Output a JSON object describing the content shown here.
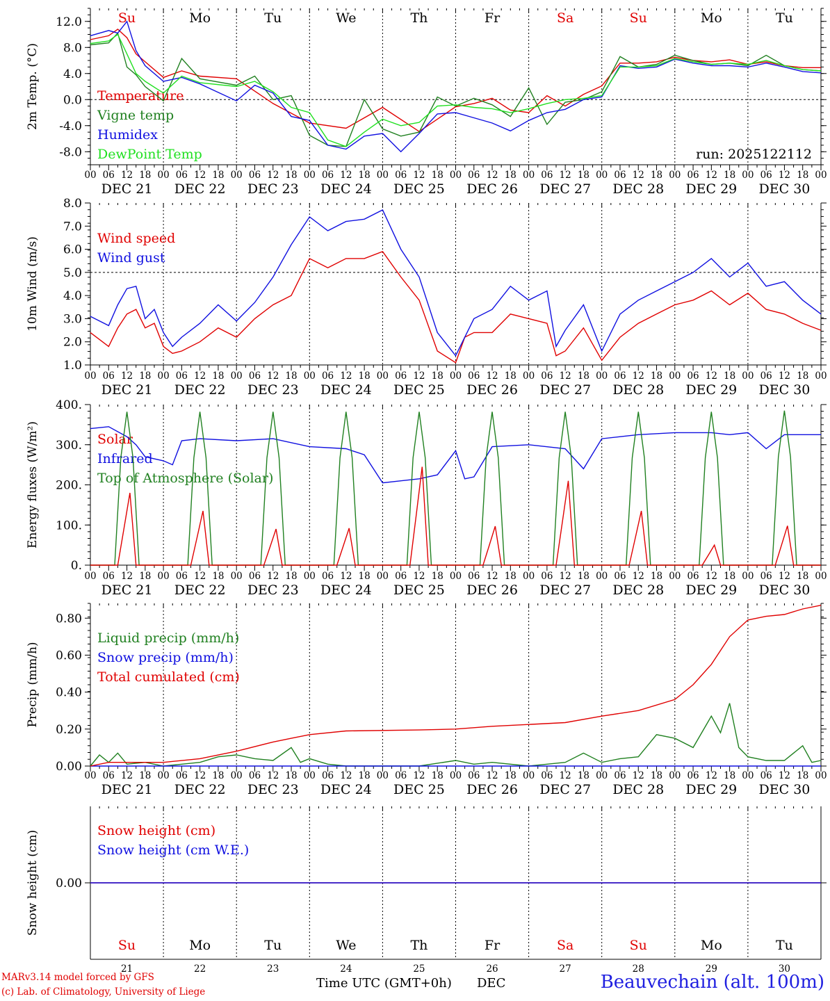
{
  "footer": {
    "model": "MARv3.14 model forced by GFS",
    "credit": "(c) Lab. of Climatology, University of Liege",
    "time_label": "Time UTC (GMT+0h)",
    "month": "DEC",
    "station": "Beauvechain (alt. 100m)"
  },
  "colors": {
    "red": "#e00000",
    "green": "#208020",
    "blue": "#1010e0",
    "lightgreen": "#20e020",
    "grid": "#000000"
  },
  "axis": {
    "hour_ticks": [
      "00",
      "06",
      "12",
      "18"
    ],
    "day_labels": [
      "DEC 21",
      "DEC 22",
      "DEC 23",
      "DEC 24",
      "DEC 25",
      "DEC 26",
      "DEC 27",
      "DEC 28",
      "DEC 29",
      "DEC 30"
    ],
    "weekdays": [
      "Su",
      "Mo",
      "Tu",
      "We",
      "Th",
      "Fr",
      "Sa",
      "Su",
      "Mo",
      "Tu"
    ],
    "weekday_colors": [
      "#e00000",
      "#000000",
      "#000000",
      "#000000",
      "#000000",
      "#000000",
      "#e00000",
      "#e00000",
      "#000000",
      "#000000"
    ],
    "day_numbers": [
      "21",
      "22",
      "23",
      "24",
      "25",
      "26",
      "27",
      "28",
      "29",
      "30"
    ],
    "x_start": "2025-12-21T00:00Z",
    "x_end": "2025-12-31T00:00Z"
  },
  "chart_data": [
    {
      "type": "line",
      "ylabel": "2m Temp. (°C)",
      "ylim": [
        -10.0,
        14.0
      ],
      "yticks": [
        "12.0",
        "8.0",
        "4.0",
        "0.0",
        "-4.0",
        "-8.0"
      ],
      "ytick_values": [
        12,
        8,
        4,
        0,
        -4,
        -8
      ],
      "ref_line": 0,
      "annotation": "run: 2025122112",
      "legend_placement": "left",
      "x_unit": "hours from 2025-12-21 00 UTC",
      "series": [
        {
          "name": "Temperature",
          "color": "#e00000",
          "x": [
            0,
            6,
            9,
            12,
            15,
            18,
            24,
            30,
            36,
            48,
            60,
            72,
            84,
            96,
            108,
            120,
            126,
            132,
            138,
            144,
            150,
            156,
            162,
            168,
            174,
            180,
            186,
            192,
            198,
            204,
            210,
            216,
            222,
            228,
            234,
            240
          ],
          "values": [
            9.2,
            9.8,
            10.8,
            9.5,
            7.0,
            5.8,
            3.4,
            4.4,
            3.6,
            3.2,
            -0.6,
            -3.6,
            -4.4,
            -1.2,
            -4.9,
            -1.1,
            -0.6,
            0.2,
            -1.6,
            -2.0,
            0.6,
            -1.0,
            0.8,
            2.1,
            5.6,
            5.6,
            5.8,
            6.5,
            6.0,
            5.8,
            6.1,
            5.4,
            5.8,
            5.2,
            4.9,
            4.9
          ]
        },
        {
          "name": "Vigne temp",
          "color": "#208020",
          "x": [
            0,
            6,
            9,
            12,
            15,
            18,
            24,
            30,
            36,
            48,
            54,
            60,
            66,
            72,
            78,
            84,
            90,
            96,
            102,
            108,
            114,
            120,
            126,
            132,
            138,
            144,
            150,
            156,
            162,
            168,
            174,
            180,
            186,
            192,
            198,
            204,
            210,
            216,
            222,
            228,
            234,
            240
          ],
          "values": [
            8.4,
            8.7,
            10.2,
            5.0,
            3.8,
            2.0,
            -0.2,
            6.3,
            3.2,
            2.2,
            3.6,
            0.0,
            0.6,
            -5.5,
            -7.0,
            -7.2,
            0.0,
            -4.5,
            -5.6,
            -5.0,
            0.4,
            -1.0,
            0.2,
            -0.8,
            -2.6,
            1.8,
            -3.8,
            -0.4,
            0.0,
            1.2,
            6.6,
            5.0,
            5.4,
            6.8,
            6.0,
            5.4,
            5.6,
            5.2,
            6.8,
            5.2,
            4.6,
            4.4
          ]
        },
        {
          "name": "Humidex",
          "color": "#1010e0",
          "x": [
            0,
            6,
            9,
            12,
            15,
            18,
            24,
            30,
            36,
            48,
            54,
            60,
            66,
            72,
            78,
            84,
            90,
            96,
            102,
            108,
            114,
            120,
            126,
            132,
            138,
            144,
            150,
            156,
            162,
            168,
            174,
            180,
            186,
            192,
            198,
            204,
            210,
            216,
            222,
            228,
            234,
            240
          ],
          "values": [
            9.8,
            10.6,
            10.2,
            12.0,
            7.5,
            5.2,
            2.8,
            3.4,
            2.4,
            -0.2,
            2.2,
            1.0,
            -2.6,
            -3.2,
            -7.0,
            -7.6,
            -5.6,
            -5.2,
            -8.0,
            -5.2,
            -2.2,
            -2.0,
            -2.8,
            -3.6,
            -4.8,
            -3.2,
            -2.0,
            -1.5,
            0.0,
            0.4,
            5.2,
            4.8,
            5.0,
            6.2,
            5.6,
            5.2,
            5.2,
            5.0,
            5.6,
            5.0,
            4.3,
            4.1
          ]
        },
        {
          "name": "DewPoint Temp",
          "color": "#20e020",
          "x": [
            0,
            6,
            9,
            12,
            15,
            18,
            24,
            30,
            36,
            48,
            54,
            60,
            66,
            72,
            78,
            84,
            90,
            96,
            102,
            108,
            114,
            120,
            126,
            132,
            138,
            144,
            150,
            156,
            162,
            168,
            174,
            180,
            186,
            192,
            198,
            204,
            210,
            216,
            222,
            228,
            234,
            240
          ],
          "values": [
            8.6,
            9.0,
            10.0,
            7.0,
            4.0,
            2.8,
            1.0,
            3.6,
            2.6,
            2.0,
            2.8,
            1.2,
            -1.2,
            -2.0,
            -6.2,
            -7.2,
            -5.0,
            -3.0,
            -4.0,
            -3.5,
            -1.0,
            -0.8,
            -1.2,
            -1.4,
            -2.0,
            -1.4,
            -0.6,
            0.0,
            0.2,
            0.6,
            5.0,
            5.0,
            5.2,
            6.3,
            5.8,
            5.4,
            5.6,
            5.4,
            6.0,
            5.2,
            4.6,
            4.4
          ]
        }
      ]
    },
    {
      "type": "line",
      "ylabel": "10m Wind (m/s)",
      "ylim": [
        1.0,
        8.0
      ],
      "yticks": [
        "8.0",
        "7.0",
        "6.0",
        "5.0",
        "4.0",
        "3.0",
        "2.0",
        "1.0"
      ],
      "ytick_values": [
        8,
        7,
        6,
        5,
        4,
        3,
        2,
        1
      ],
      "ref_line": 5,
      "legend_placement": "top-left",
      "x_unit": "hours from 2025-12-21 00 UTC",
      "series": [
        {
          "name": "Wind speed",
          "color": "#e00000",
          "x": [
            0,
            6,
            9,
            12,
            15,
            18,
            21,
            24,
            27,
            30,
            36,
            42,
            48,
            54,
            60,
            66,
            72,
            78,
            84,
            90,
            96,
            102,
            108,
            114,
            120,
            123,
            126,
            132,
            138,
            144,
            150,
            153,
            156,
            162,
            168,
            174,
            180,
            186,
            192,
            198,
            204,
            210,
            216,
            222,
            228,
            234,
            240
          ],
          "values": [
            2.4,
            1.8,
            2.6,
            3.2,
            3.4,
            2.6,
            2.8,
            1.8,
            1.5,
            1.6,
            2.0,
            2.6,
            2.2,
            3.0,
            3.6,
            4.0,
            5.6,
            5.2,
            5.6,
            5.6,
            5.9,
            4.8,
            3.8,
            1.6,
            1.1,
            2.2,
            2.4,
            2.4,
            3.2,
            3.0,
            2.8,
            1.4,
            1.6,
            2.6,
            1.2,
            2.2,
            2.8,
            3.2,
            3.6,
            3.8,
            4.2,
            3.6,
            4.1,
            3.4,
            3.2,
            2.8,
            2.5
          ]
        },
        {
          "name": "Wind gust",
          "color": "#1010e0",
          "x": [
            0,
            6,
            9,
            12,
            15,
            18,
            21,
            24,
            27,
            30,
            36,
            42,
            48,
            54,
            60,
            66,
            72,
            78,
            84,
            90,
            96,
            102,
            108,
            114,
            120,
            123,
            126,
            132,
            138,
            144,
            150,
            153,
            156,
            162,
            168,
            174,
            180,
            186,
            192,
            198,
            204,
            210,
            216,
            222,
            228,
            234,
            240
          ],
          "values": [
            3.1,
            2.7,
            3.6,
            4.3,
            4.4,
            3.0,
            3.4,
            2.4,
            1.8,
            2.2,
            2.8,
            3.6,
            2.9,
            3.7,
            4.8,
            6.2,
            7.4,
            6.8,
            7.2,
            7.3,
            7.7,
            6.0,
            4.8,
            2.4,
            1.4,
            2.2,
            3.0,
            3.4,
            4.4,
            3.8,
            4.2,
            1.8,
            2.5,
            3.6,
            1.6,
            3.2,
            3.8,
            4.2,
            4.6,
            5.0,
            5.6,
            4.8,
            5.4,
            4.4,
            4.6,
            3.8,
            3.2
          ]
        }
      ]
    },
    {
      "type": "line",
      "ylabel": "Energy fluxes (W/m²)",
      "ylim": [
        0,
        400
      ],
      "yticks": [
        "400.",
        "300.",
        "200.",
        "100.",
        "0."
      ],
      "ytick_values": [
        400,
        300,
        200,
        100,
        0
      ],
      "legend_placement": "top-left",
      "x_unit": "hours from 2025-12-21 00 UTC",
      "daily_peaks": {
        "toa_solar": [
          382,
          382,
          382,
          382,
          382,
          382,
          382,
          382,
          382,
          385
        ],
        "solar": [
          180,
          135,
          90,
          92,
          245,
          97,
          210,
          135,
          50,
          98
        ]
      },
      "series": [
        {
          "name": "Solar",
          "color": "#e00000",
          "x": [],
          "values": []
        },
        {
          "name": "Infrared",
          "color": "#1010e0",
          "x": [
            0,
            6,
            12,
            15,
            18,
            24,
            27,
            30,
            36,
            48,
            60,
            72,
            84,
            90,
            96,
            102,
            108,
            114,
            120,
            123,
            126,
            132,
            144,
            156,
            162,
            168,
            174,
            180,
            192,
            204,
            210,
            216,
            222,
            228,
            234,
            240
          ],
          "values": [
            340,
            345,
            320,
            300,
            270,
            260,
            250,
            310,
            315,
            310,
            315,
            295,
            290,
            275,
            205,
            210,
            215,
            225,
            285,
            215,
            220,
            295,
            300,
            290,
            240,
            315,
            320,
            325,
            330,
            330,
            325,
            330,
            290,
            325,
            325,
            325
          ]
        },
        {
          "name": "Top of Atmosphere (Solar)",
          "color": "#208020",
          "x": [],
          "values": []
        }
      ]
    },
    {
      "type": "line",
      "ylabel": "Precip (mm/h)",
      "ylim": [
        0,
        0.88
      ],
      "yticks": [
        "0.80",
        "0.60",
        "0.40",
        "0.20",
        "0.00"
      ],
      "ytick_values": [
        0.8,
        0.6,
        0.4,
        0.2,
        0.0
      ],
      "legend_placement": "top-left",
      "x_unit": "hours from 2025-12-21 00 UTC",
      "series": [
        {
          "name": "Liquid precip (mm/h)",
          "color": "#208020",
          "x": [
            0,
            3,
            6,
            9,
            12,
            18,
            24,
            36,
            42,
            48,
            54,
            60,
            66,
            69,
            72,
            78,
            84,
            96,
            108,
            120,
            126,
            132,
            144,
            156,
            162,
            168,
            174,
            180,
            186,
            192,
            198,
            204,
            207,
            210,
            213,
            216,
            222,
            228,
            234,
            237,
            240
          ],
          "values": [
            0.0,
            0.06,
            0.02,
            0.07,
            0.01,
            0.02,
            0.0,
            0.02,
            0.05,
            0.06,
            0.04,
            0.03,
            0.1,
            0.02,
            0.04,
            0.01,
            0.0,
            0.0,
            0.0,
            0.03,
            0.01,
            0.02,
            0.0,
            0.02,
            0.07,
            0.02,
            0.04,
            0.05,
            0.17,
            0.15,
            0.1,
            0.27,
            0.18,
            0.34,
            0.1,
            0.05,
            0.03,
            0.03,
            0.11,
            0.02,
            0.03
          ]
        },
        {
          "name": "Snow precip (mm/h)",
          "color": "#1010e0",
          "x": [
            0,
            240
          ],
          "values": [
            0,
            0
          ]
        },
        {
          "name": "Total cumulated (cm)",
          "color": "#e00000",
          "x": [
            0,
            6,
            24,
            36,
            48,
            60,
            66,
            72,
            84,
            108,
            120,
            132,
            144,
            156,
            168,
            180,
            192,
            198,
            204,
            210,
            216,
            222,
            228,
            234,
            240
          ],
          "values": [
            0.0,
            0.02,
            0.02,
            0.04,
            0.08,
            0.13,
            0.15,
            0.17,
            0.19,
            0.195,
            0.2,
            0.215,
            0.225,
            0.235,
            0.27,
            0.3,
            0.36,
            0.44,
            0.55,
            0.7,
            0.79,
            0.81,
            0.82,
            0.85,
            0.87
          ]
        }
      ]
    },
    {
      "type": "line",
      "ylabel": "Snow height (cm)",
      "ylim": [
        -1,
        1
      ],
      "yticks": [
        "0.00"
      ],
      "ytick_values": [
        0
      ],
      "legend_placement": "top-left",
      "x_unit": "hours from 2025-12-21 00 UTC",
      "series": [
        {
          "name": "Snow height (cm)",
          "color": "#e00000",
          "x": [
            0,
            240
          ],
          "values": [
            0,
            0
          ]
        },
        {
          "name": "Snow height (cm W.E.)",
          "color": "#1010e0",
          "x": [
            0,
            240
          ],
          "values": [
            0,
            0
          ]
        }
      ]
    }
  ]
}
